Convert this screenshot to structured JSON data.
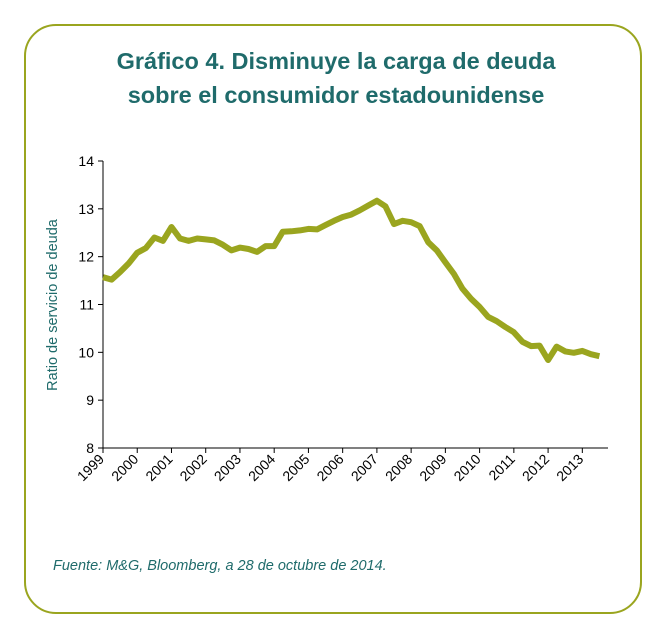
{
  "colors": {
    "frame": "#9aa51f",
    "title": "#1f6b6b",
    "line": "#9aa51f",
    "axis": "#000000"
  },
  "title_line1": "Gráfico 4. Disminuye la carga de deuda",
  "title_line2": "sobre el consumidor estadounidense",
  "source": "Fuente: M&G, Bloomberg, a 28 de octubre de 2014.",
  "chart_data": {
    "type": "line",
    "title": "Gráfico 4. Disminuye la carga de deuda sobre el consumidor estadounidense",
    "xlabel": "",
    "ylabel": "Ratio de servicio de deuda",
    "ylim": [
      8,
      14
    ],
    "yticks": [
      "8",
      "9",
      "10",
      "11",
      "12",
      "13",
      "14"
    ],
    "xlim": [
      1999,
      2013.75
    ],
    "xticks": [
      "1999",
      "2000",
      "2001",
      "2002",
      "2003",
      "2004",
      "2005",
      "2006",
      "2007",
      "2008",
      "2009",
      "2010",
      "2011",
      "2012",
      "2013"
    ],
    "grid": false,
    "series": [
      {
        "name": "",
        "x": [
          1999.0,
          1999.25,
          1999.5,
          1999.75,
          2000.0,
          2000.25,
          2000.5,
          2000.75,
          2001.0,
          2001.25,
          2001.5,
          2001.75,
          2002.0,
          2002.25,
          2002.5,
          2002.75,
          2003.0,
          2003.25,
          2003.5,
          2003.75,
          2004.0,
          2004.25,
          2004.5,
          2004.75,
          2005.0,
          2005.25,
          2005.5,
          2005.75,
          2006.0,
          2006.25,
          2006.5,
          2006.75,
          2007.0,
          2007.25,
          2007.5,
          2007.75,
          2008.0,
          2008.25,
          2008.5,
          2008.75,
          2009.0,
          2009.25,
          2009.5,
          2009.75,
          2010.0,
          2010.25,
          2010.5,
          2010.75,
          2011.0,
          2011.25,
          2011.5,
          2011.75,
          2012.0,
          2012.25,
          2012.5,
          2012.75,
          2013.0,
          2013.25,
          2013.5
        ],
        "y": [
          11.57,
          11.52,
          11.68,
          11.86,
          12.08,
          12.18,
          12.4,
          12.33,
          12.62,
          12.38,
          12.33,
          12.38,
          12.36,
          12.34,
          12.25,
          12.13,
          12.19,
          12.16,
          12.1,
          12.22,
          12.22,
          12.52,
          12.53,
          12.55,
          12.58,
          12.57,
          12.66,
          12.75,
          12.83,
          12.88,
          12.97,
          13.07,
          13.17,
          13.05,
          12.68,
          12.75,
          12.72,
          12.64,
          12.3,
          12.13,
          11.88,
          11.64,
          11.33,
          11.12,
          10.95,
          10.74,
          10.65,
          10.53,
          10.42,
          10.22,
          10.13,
          10.14,
          9.84,
          10.12,
          10.02,
          9.99,
          10.03,
          9.96,
          9.92
        ]
      }
    ]
  }
}
